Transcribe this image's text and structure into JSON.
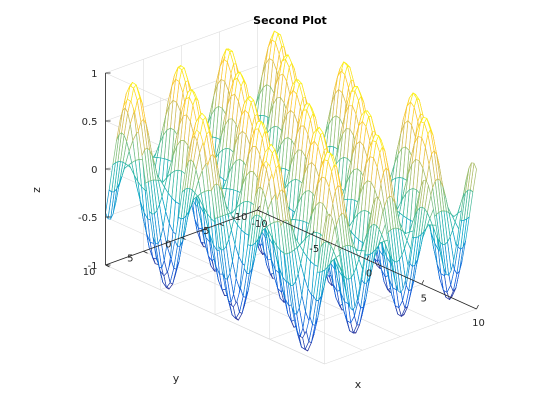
{
  "chart_data": {
    "type": "surface-mesh",
    "title": "Second Plot",
    "xlabel": "x",
    "ylabel": "y",
    "zlabel": "z",
    "xlim": [
      -10,
      10
    ],
    "ylim": [
      -10,
      10
    ],
    "zlim": [
      -1,
      1
    ],
    "x_ticks": [
      "-10",
      "-5",
      "0",
      "5",
      "10"
    ],
    "y_ticks": [
      "-10",
      "-5",
      "0",
      "5",
      "10"
    ],
    "z_ticks": [
      "-1",
      "-0.5",
      "0",
      "0.5",
      "1"
    ],
    "x_tick_values": [
      -10,
      -5,
      0,
      5,
      10
    ],
    "y_tick_values": [
      -10,
      -5,
      0,
      5,
      10
    ],
    "z_tick_values": [
      -1,
      -0.5,
      0,
      0.5,
      1
    ],
    "function": "z = sin(x) * cos(y)",
    "grid": true,
    "colormap": "parula",
    "colormap_stops": [
      "#352a87",
      "#0f5cdd",
      "#1481d6",
      "#06a4ca",
      "#2eb7a4",
      "#87bf77",
      "#d1bb59",
      "#fec832",
      "#f9fb0e"
    ]
  }
}
